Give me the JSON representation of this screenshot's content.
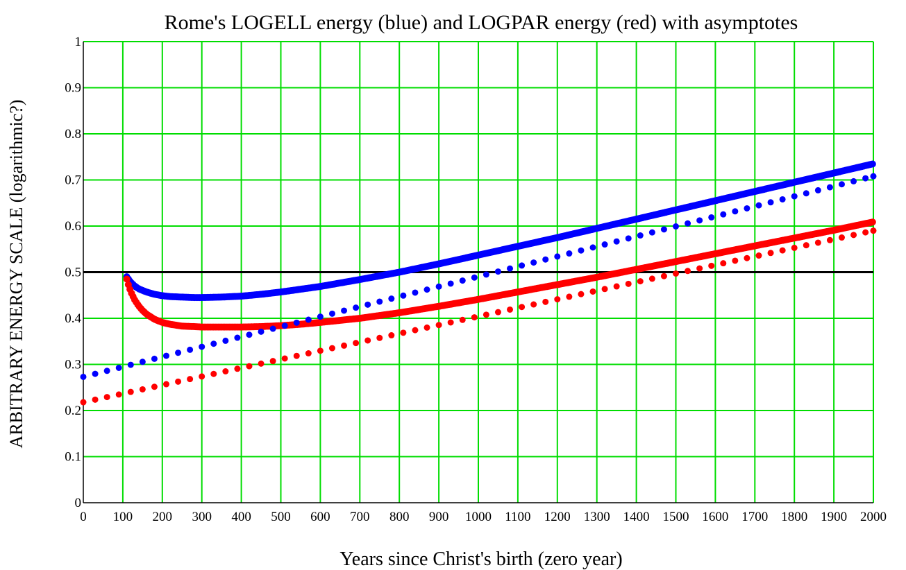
{
  "chart_data": {
    "type": "scatter",
    "title": "Rome's LOGELL energy (blue) and LOGPAR energy (red) with asymptotes",
    "xlabel": "Years since Christ's birth (zero year)",
    "ylabel": "ARBITRARY ENERGY SCALE (logarithmic?)",
    "xlim": [
      0,
      2000
    ],
    "ylim": [
      0,
      1
    ],
    "x_ticks": [
      "0",
      "100",
      "200",
      "300",
      "400",
      "500",
      "600",
      "700",
      "800",
      "900",
      "1000",
      "1100",
      "1200",
      "1300",
      "1400",
      "1500",
      "1600",
      "1700",
      "1800",
      "1900",
      "2000"
    ],
    "y_ticks": [
      "0",
      "0.1",
      "0.2",
      "0.3",
      "0.4",
      "0.5",
      "0.6",
      "0.7",
      "0.8",
      "0.9",
      "1"
    ],
    "grid": true,
    "grid_color": "#00dd00",
    "reference_line": {
      "y": 0.5,
      "color": "#000000"
    },
    "series": [
      {
        "color": "#0000ff",
        "style": "dense-dots",
        "x": [
          110,
          120,
          130,
          140,
          160,
          180,
          200,
          220,
          250,
          280,
          300,
          350,
          400,
          450,
          500,
          550,
          600,
          700,
          800,
          900,
          1000,
          1100,
          1200,
          1300,
          1400,
          1500,
          1600,
          1700,
          1800,
          1900,
          2000
        ],
        "y": [
          0.49,
          0.478,
          0.47,
          0.464,
          0.457,
          0.452,
          0.449,
          0.447,
          0.446,
          0.445,
          0.445,
          0.446,
          0.448,
          0.452,
          0.457,
          0.463,
          0.469,
          0.484,
          0.5,
          0.518,
          0.537,
          0.556,
          0.575,
          0.595,
          0.615,
          0.635,
          0.655,
          0.675,
          0.695,
          0.715,
          0.735
        ]
      },
      {
        "color": "#ff0000",
        "style": "dense-dots",
        "x": [
          110,
          115,
          120,
          130,
          140,
          150,
          160,
          180,
          200,
          220,
          250,
          280,
          300,
          350,
          400,
          450,
          500,
          550,
          600,
          700,
          800,
          900,
          1000,
          1100,
          1200,
          1300,
          1400,
          1500,
          1600,
          1700,
          1800,
          1900,
          2000
        ],
        "y": [
          0.485,
          0.47,
          0.458,
          0.44,
          0.427,
          0.417,
          0.409,
          0.398,
          0.391,
          0.387,
          0.383,
          0.382,
          0.381,
          0.381,
          0.381,
          0.382,
          0.384,
          0.387,
          0.391,
          0.4,
          0.412,
          0.426,
          0.441,
          0.457,
          0.473,
          0.489,
          0.506,
          0.523,
          0.54,
          0.557,
          0.574,
          0.591,
          0.609
        ]
      },
      {
        "color": "#0000ff",
        "style": "sparse-dots",
        "x_start": 0,
        "x_end": 2000,
        "x_step": 30,
        "y_start": 0.273,
        "y_end": 0.708
      },
      {
        "color": "#ff0000",
        "style": "sparse-dots",
        "x_start": 0,
        "x_end": 2000,
        "x_step": 30,
        "y_start": 0.218,
        "y_end": 0.59
      }
    ]
  }
}
